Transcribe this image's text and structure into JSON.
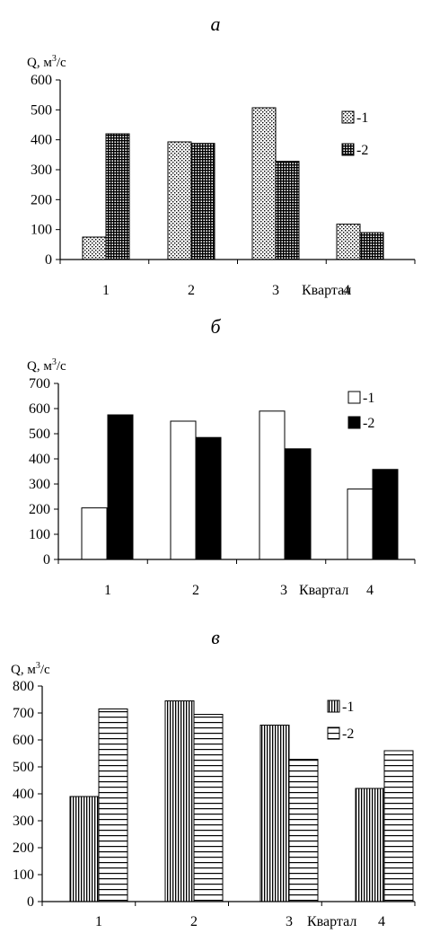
{
  "chart_data": [
    {
      "type": "bar",
      "title": "а",
      "ylabel": "Q, м3/с",
      "ylabel_base": "Q, м",
      "ylabel_sup": "3",
      "ylabel_tail": "/с",
      "xlabel": "Квартал",
      "categories": [
        "1",
        "2",
        "3",
        "4"
      ],
      "ylim": [
        0,
        600
      ],
      "yticks": [
        0,
        100,
        200,
        300,
        400,
        500,
        600
      ],
      "legend_position": "top-right",
      "series": [
        {
          "name": "-1",
          "values": [
            75,
            393,
            507,
            118
          ],
          "pattern": "dots"
        },
        {
          "name": "-2",
          "values": [
            420,
            388,
            328,
            90
          ],
          "pattern": "dense-grid"
        }
      ]
    },
    {
      "type": "bar",
      "title": "б",
      "ylabel": "Q, м3/с",
      "ylabel_base": "Q, м",
      "ylabel_sup": "3",
      "ylabel_tail": "/с",
      "xlabel": "Квартал",
      "categories": [
        "1",
        "2",
        "3",
        "4"
      ],
      "ylim": [
        0,
        700
      ],
      "yticks": [
        0,
        100,
        200,
        300,
        400,
        500,
        600,
        700
      ],
      "legend_position": "top-right",
      "series": [
        {
          "name": "-1",
          "values": [
            205,
            550,
            590,
            280
          ],
          "pattern": "white"
        },
        {
          "name": "-2",
          "values": [
            575,
            485,
            440,
            358
          ],
          "pattern": "black"
        }
      ]
    },
    {
      "type": "bar",
      "title": "в",
      "ylabel": "Q, м3/с",
      "ylabel_base": "Q, м",
      "ylabel_sup": "3",
      "ylabel_tail": "/с",
      "xlabel": "Квартал",
      "categories": [
        "1",
        "2",
        "3",
        "4"
      ],
      "ylim": [
        0,
        800
      ],
      "yticks": [
        0,
        100,
        200,
        300,
        400,
        500,
        600,
        700,
        800
      ],
      "legend_position": "top-right",
      "series": [
        {
          "name": "-1",
          "values": [
            390,
            745,
            655,
            420
          ],
          "pattern": "vertical-lines"
        },
        {
          "name": "-2",
          "values": [
            715,
            695,
            528,
            560
          ],
          "pattern": "horizontal-lines"
        }
      ]
    }
  ]
}
